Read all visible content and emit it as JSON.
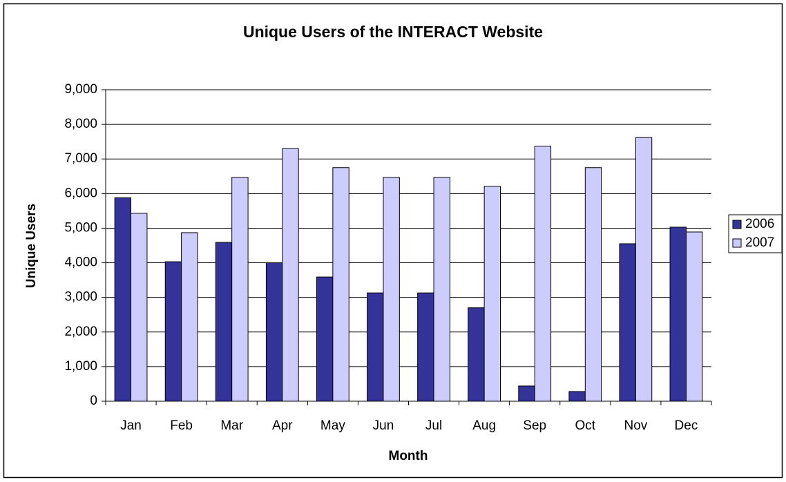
{
  "chart_data": {
    "type": "bar",
    "title": "Unique Users of the INTERACT Website",
    "x_label": "Month",
    "y_label": "Unique Users",
    "categories": [
      "Jan",
      "Feb",
      "Mar",
      "Apr",
      "May",
      "Jun",
      "Jul",
      "Aug",
      "Sep",
      "Oct",
      "Nov",
      "Dec"
    ],
    "series": [
      {
        "name": "2006",
        "color": "#333399",
        "values": [
          5880,
          4030,
          4590,
          4000,
          3590,
          3130,
          3130,
          2700,
          440,
          280,
          4550,
          5030
        ]
      },
      {
        "name": "2007",
        "color": "#ccccff",
        "values": [
          5430,
          4870,
          6470,
          7300,
          6750,
          6470,
          6470,
          6210,
          7370,
          6750,
          7620,
          4890
        ]
      }
    ],
    "ylim": [
      0,
      9000
    ],
    "yticks": [
      0,
      {
        "value": 1000,
        "label": "1,000"
      },
      {
        "value": 2000,
        "label": "2,000"
      },
      {
        "value": 3000,
        "label": "3,000"
      },
      {
        "value": 4000,
        "label": "4,000"
      },
      {
        "value": 5000,
        "label": "5,000"
      },
      {
        "value": 6000,
        "label": "6,000"
      },
      {
        "value": 7000,
        "label": "7,000"
      },
      {
        "value": 8000,
        "label": "8,000"
      },
      {
        "value": 9000,
        "label": "9,000"
      }
    ],
    "grid": true,
    "legend": "right"
  }
}
